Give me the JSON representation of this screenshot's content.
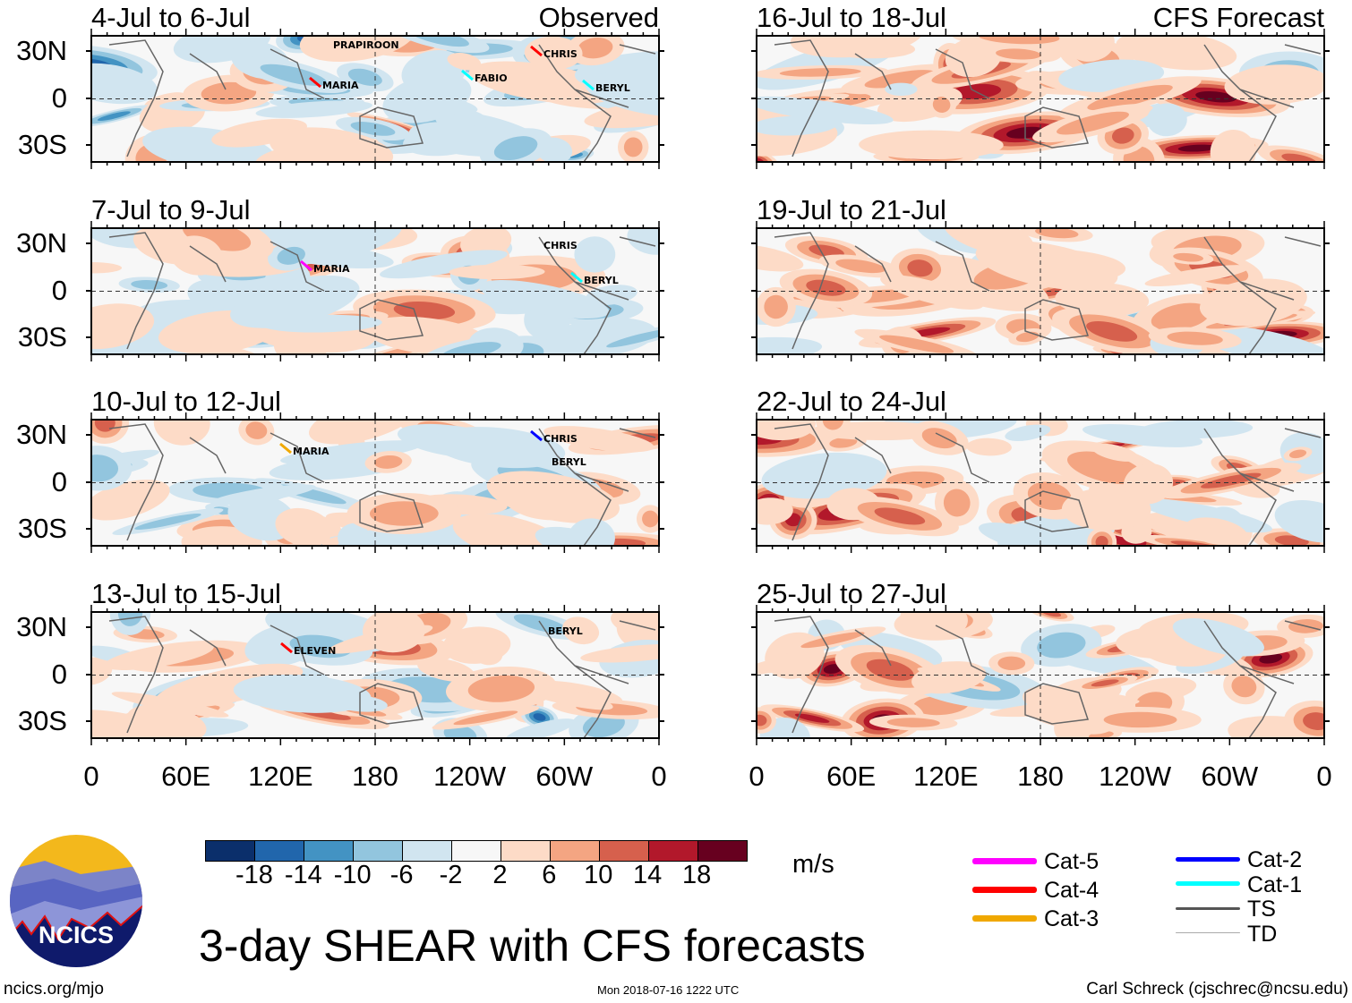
{
  "panels_left": [
    {
      "title": "4-Jul to 6-Jul",
      "tag": "Observed",
      "storms": [
        "PRAPIROON",
        "MARIA",
        "FABIO",
        "CHRIS",
        "BERYL"
      ]
    },
    {
      "title": "7-Jul to 9-Jul",
      "storms": [
        "CHRIS",
        "MARIA",
        "BERYL"
      ]
    },
    {
      "title": "10-Jul to 12-Jul",
      "storms": [
        "CHRIS",
        "MARIA",
        "BERYL"
      ]
    },
    {
      "title": "13-Jul to 15-Jul",
      "storms": [
        "BERYL",
        "ELEVEN"
      ]
    }
  ],
  "panels_right": [
    {
      "title": "16-Jul to 18-Jul",
      "tag": "CFS Forecast"
    },
    {
      "title": "19-Jul to 21-Jul"
    },
    {
      "title": "22-Jul to 24-Jul"
    },
    {
      "title": "25-Jul to 27-Jul"
    }
  ],
  "lat_labels": [
    "30N",
    "0",
    "30S"
  ],
  "lon_labels": [
    "0",
    "60E",
    "120E",
    "180",
    "120W",
    "60W",
    "0"
  ],
  "colorbar": {
    "colors": [
      "#0b2f6b",
      "#2166ac",
      "#4393c3",
      "#92c5de",
      "#d1e5f0",
      "#f7f7f7",
      "#fddbc7",
      "#f4a582",
      "#d6604d",
      "#b2182b",
      "#67001f"
    ],
    "labels": [
      "-18",
      "-14",
      "-10",
      "-6",
      "-2",
      "2",
      "6",
      "10",
      "14",
      "18"
    ],
    "units": "m/s"
  },
  "legend": [
    {
      "label": "Cat-5",
      "color": "#ff00ff"
    },
    {
      "label": "Cat-4",
      "color": "#ff0000"
    },
    {
      "label": "Cat-3",
      "color": "#f0a800"
    },
    {
      "label": "Cat-2",
      "color": "#0000ff"
    },
    {
      "label": "Cat-1",
      "color": "#00ffff"
    },
    {
      "label": "TS",
      "color": "#555555"
    },
    {
      "label": "TD",
      "color": "#aaaaaa"
    }
  ],
  "logo_text": "NCICS",
  "title": "3-day SHEAR with CFS forecasts",
  "footer": {
    "left": "ncics.org/mjo",
    "center": "Mon 2018-07-16 1222 UTC",
    "right": "Carl Schreck (cjschrec@ncsu.edu)"
  }
}
